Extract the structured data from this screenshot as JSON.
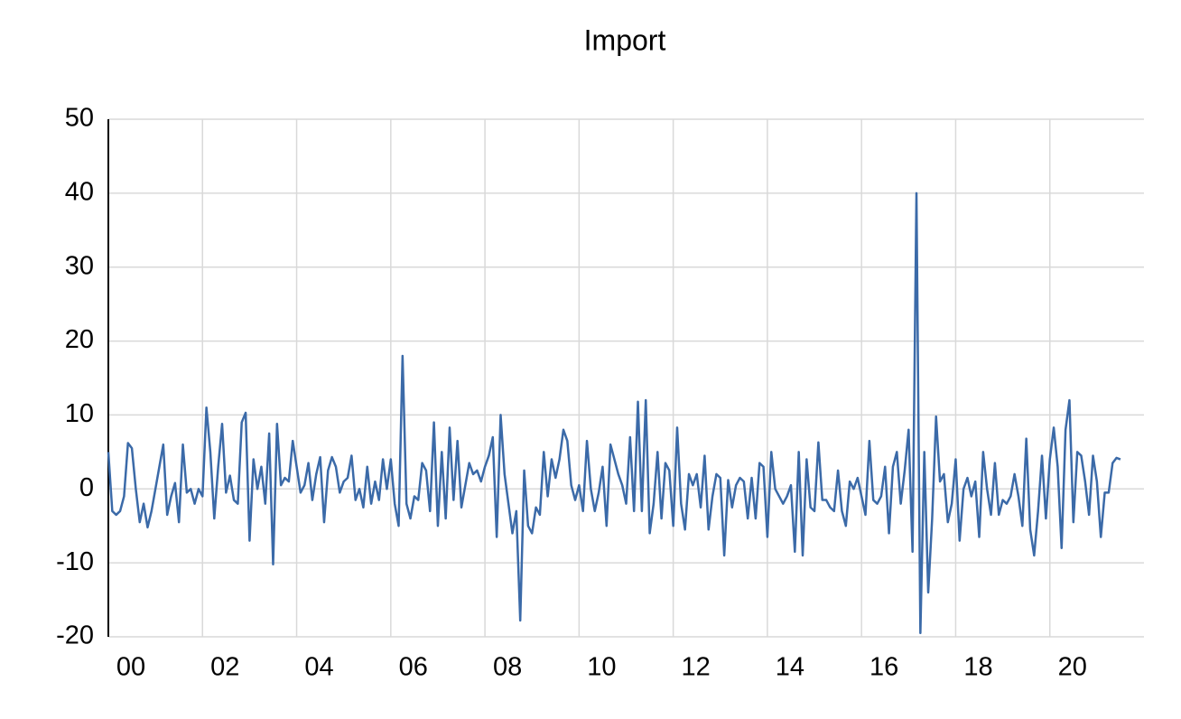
{
  "chart_data": {
    "type": "line",
    "title": "Import",
    "color": "#3b6aa8",
    "ylim": [
      -20,
      50
    ],
    "yticks": [
      -20,
      -10,
      0,
      10,
      20,
      30,
      40,
      50
    ],
    "grid": true,
    "categories": [
      "00",
      null,
      null,
      null,
      null,
      null,
      null,
      null,
      null,
      null,
      null,
      null,
      null,
      null,
      null,
      null,
      null,
      null,
      null,
      null,
      null,
      null,
      null,
      null,
      "02",
      null,
      null,
      null,
      null,
      null,
      null,
      null,
      null,
      null,
      null,
      null,
      null,
      null,
      null,
      null,
      null,
      null,
      null,
      null,
      null,
      null,
      null,
      null,
      "04",
      null,
      null,
      null,
      null,
      null,
      null,
      null,
      null,
      null,
      null,
      null,
      null,
      null,
      null,
      null,
      null,
      null,
      null,
      null,
      null,
      null,
      null,
      null,
      "06",
      null,
      null,
      null,
      null,
      null,
      null,
      null,
      null,
      null,
      null,
      null,
      null,
      null,
      null,
      null,
      null,
      null,
      null,
      null,
      null,
      null,
      null,
      null,
      "08",
      null,
      null,
      null,
      null,
      null,
      null,
      null,
      null,
      null,
      null,
      null,
      null,
      null,
      null,
      null,
      null,
      null,
      null,
      null,
      null,
      null,
      null,
      null,
      "10",
      null,
      null,
      null,
      null,
      null,
      null,
      null,
      null,
      null,
      null,
      null,
      null,
      null,
      null,
      null,
      null,
      null,
      null,
      null,
      null,
      null,
      null,
      null,
      "12",
      null,
      null,
      null,
      null,
      null,
      null,
      null,
      null,
      null,
      null,
      null,
      null,
      null,
      null,
      null,
      null,
      null,
      null,
      null,
      null,
      null,
      null,
      null,
      "14",
      null,
      null,
      null,
      null,
      null,
      null,
      null,
      null,
      null,
      null,
      null,
      null,
      null,
      null,
      null,
      null,
      null,
      null,
      null,
      null,
      null,
      null,
      null,
      "16",
      null,
      null,
      null,
      null,
      null,
      null,
      null,
      null,
      null,
      null,
      null,
      null,
      null,
      null,
      null,
      null,
      null,
      null,
      null,
      null,
      null,
      null,
      null,
      "18",
      null,
      null,
      null,
      null,
      null,
      null,
      null,
      null,
      null,
      null,
      null,
      null,
      null,
      null,
      null,
      null,
      null,
      null,
      null,
      null,
      null,
      null,
      null,
      "20",
      null,
      null,
      null,
      null,
      null,
      null,
      null,
      null,
      null,
      null,
      null,
      null,
      null,
      null,
      null,
      null,
      null,
      null
    ],
    "values": [
      5,
      -3,
      -3.5,
      -3,
      -1,
      6.2,
      5.5,
      0,
      -4.5,
      -2,
      -5.2,
      -3,
      0,
      3,
      6,
      -3.5,
      -1,
      0.8,
      -4.5,
      6,
      -0.5,
      0,
      -2,
      0,
      -1,
      11,
      5,
      -4,
      3,
      8.8,
      -0.5,
      1.8,
      -1.5,
      -2,
      9,
      10.3,
      -7,
      4,
      0,
      3,
      -2,
      7.5,
      -10.2,
      8.8,
      0.5,
      1.5,
      1,
      6.5,
      3,
      -0.5,
      0.5,
      3.5,
      -1.5,
      2,
      4.3,
      -4.5,
      2.5,
      4.3,
      3,
      -0.5,
      1,
      1.5,
      4.5,
      -1.5,
      0,
      -2.5,
      3,
      -2,
      1,
      -1.5,
      4,
      0,
      4,
      -2,
      -5,
      18,
      -2,
      -4,
      -1,
      -1.5,
      3.5,
      2.5,
      -3,
      9,
      -5,
      5,
      -4,
      8.3,
      -1.5,
      6.5,
      -2.5,
      0.5,
      3.5,
      2,
      2.5,
      1,
      3,
      4.5,
      7,
      -6.5,
      10,
      2,
      -2,
      -6,
      -3,
      -17.8,
      2.5,
      -5,
      -6,
      -2.5,
      -3.5,
      5,
      -1,
      4,
      1.5,
      4,
      8,
      6.5,
      0.5,
      -1.5,
      0.5,
      -3,
      6.5,
      0,
      -3,
      -0.5,
      3,
      -5,
      6,
      4,
      2,
      0.5,
      -2,
      7,
      -3,
      11.8,
      -3,
      12,
      -6,
      -2,
      5,
      -4,
      3.5,
      2.5,
      -5,
      8.3,
      -2,
      -5.5,
      2,
      0.5,
      2,
      -2.5,
      4.5,
      -5.5,
      -1,
      2,
      1.5,
      -9,
      1.2,
      -2.5,
      0.5,
      1.5,
      1,
      -4,
      1.5,
      -4,
      3.5,
      3,
      -6.5,
      5,
      0,
      -1,
      -2,
      -1,
      0.5,
      -8.5,
      5,
      -9,
      4,
      -2.5,
      -3,
      6.3,
      -1.5,
      -1.5,
      -2.5,
      -3,
      2.5,
      -3,
      -5,
      1,
      0,
      1.5,
      -1,
      -3.5,
      6.5,
      -1.5,
      -2,
      -1,
      3,
      -6,
      3,
      5,
      -2,
      2.5,
      8,
      -8.5,
      40,
      -19.5,
      5,
      -14,
      -4,
      9.8,
      1,
      2,
      -4.5,
      -2,
      4,
      -7,
      0,
      1.5,
      -1,
      1,
      -6.5,
      5,
      0,
      -3.5,
      3.5,
      -3.5,
      -1.5,
      -2,
      -1,
      2,
      -1,
      -5,
      6.8,
      -5.5,
      -9,
      -3,
      4.5,
      -4,
      4,
      8.3,
      3,
      -8,
      8,
      12,
      -4.5,
      5,
      4.5,
      1,
      -3.5,
      4.5,
      1,
      -6.5,
      -0.5,
      -0.5,
      3.5,
      4.2,
      4
    ]
  }
}
